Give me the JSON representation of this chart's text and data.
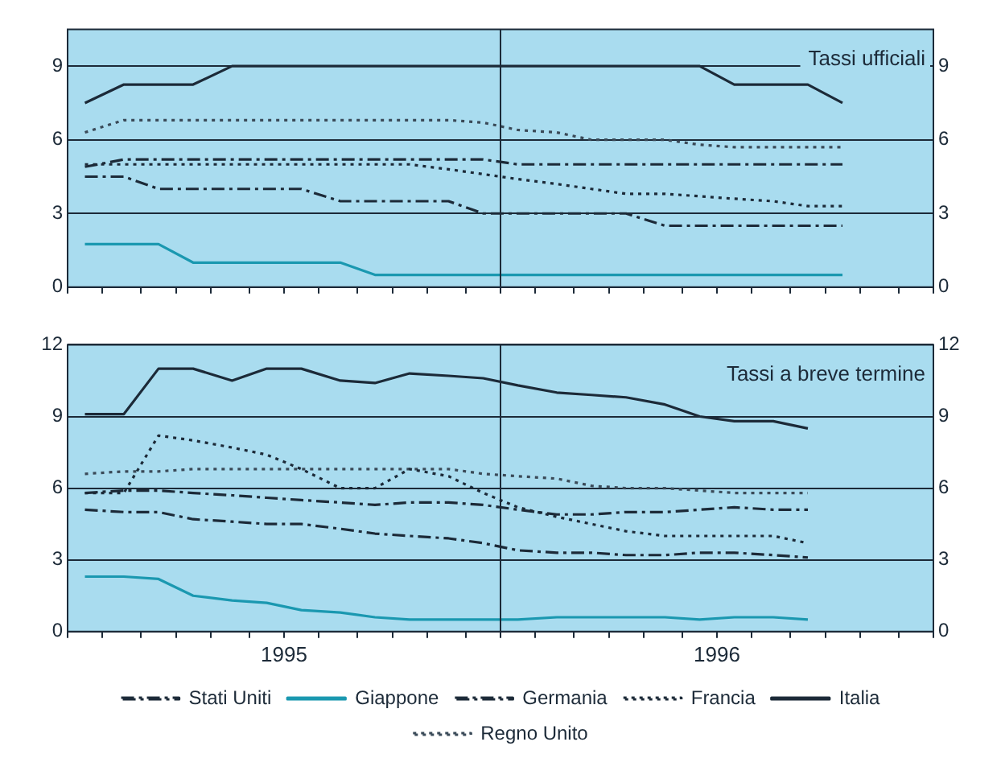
{
  "chart_data": [
    {
      "type": "line",
      "title": "Tassi ufficiali",
      "x": [
        1995.04,
        1995.13,
        1995.21,
        1995.29,
        1995.38,
        1995.46,
        1995.54,
        1995.63,
        1995.71,
        1995.79,
        1995.88,
        1995.96,
        1996.04,
        1996.13,
        1996.21,
        1996.29,
        1996.38,
        1996.46,
        1996.54,
        1996.63,
        1996.71,
        1996.79
      ],
      "series": [
        {
          "color": "#1c2a38",
          "line_style": "dashed",
          "values": [
            4.9,
            5.2,
            5.2,
            5.2,
            5.2,
            5.2,
            5.2,
            5.2,
            5.2,
            5.2,
            5.2,
            5.2,
            5.0,
            5.0,
            5.0,
            5.0,
            5.0,
            5.0,
            5.0,
            5.0,
            5.0,
            5.0
          ]
        },
        {
          "color": "#1a98b0",
          "line_style": "solid",
          "values": [
            1.75,
            1.75,
            1.75,
            1.0,
            1.0,
            1.0,
            1.0,
            1.0,
            0.5,
            0.5,
            0.5,
            0.5,
            0.5,
            0.5,
            0.5,
            0.5,
            0.5,
            0.5,
            0.5,
            0.5,
            0.5,
            0.5
          ]
        },
        {
          "color": "#1c2a38",
          "line_style": "dashed",
          "values": [
            4.5,
            4.5,
            4.0,
            4.0,
            4.0,
            4.0,
            4.0,
            3.5,
            3.5,
            3.5,
            3.5,
            3.0,
            3.0,
            3.0,
            3.0,
            3.0,
            2.5,
            2.5,
            2.5,
            2.5,
            2.5,
            2.5
          ]
        },
        {
          "color": "#1c2a38",
          "line_style": "dotted",
          "values": [
            5.0,
            5.0,
            5.0,
            5.0,
            5.0,
            5.0,
            5.0,
            5.0,
            5.0,
            5.0,
            4.8,
            4.6,
            4.4,
            4.2,
            4.0,
            3.8,
            3.8,
            3.7,
            3.6,
            3.5,
            3.3,
            3.3
          ]
        },
        {
          "color": "#1c2a38",
          "line_style": "solid",
          "values": [
            7.5,
            8.25,
            8.25,
            8.25,
            9.0,
            9.0,
            9.0,
            9.0,
            9.0,
            9.0,
            9.0,
            9.0,
            9.0,
            9.0,
            9.0,
            9.0,
            9.0,
            9.0,
            8.25,
            8.25,
            8.25,
            7.5
          ]
        },
        {
          "color": "#3a4a58",
          "line_style": "dotted",
          "values": [
            6.3,
            6.8,
            6.8,
            6.8,
            6.8,
            6.8,
            6.8,
            6.8,
            6.8,
            6.8,
            6.8,
            6.7,
            6.4,
            6.3,
            6.0,
            6.0,
            6.0,
            5.8,
            5.7,
            5.7,
            5.7,
            5.7
          ]
        }
      ],
      "xlim": [
        1995,
        1997
      ],
      "xticks": [
        {
          "value": 1995,
          "label": null
        },
        {
          "value": 1995.08,
          "label": null
        },
        {
          "value": 1995.17,
          "label": null
        },
        {
          "value": 1995.25,
          "label": null
        },
        {
          "value": 1995.33,
          "label": null
        },
        {
          "value": 1995.42,
          "label": null
        },
        {
          "value": 1995.5,
          "label": null
        },
        {
          "value": 1995.58,
          "label": null
        },
        {
          "value": 1995.67,
          "label": null
        },
        {
          "value": 1995.75,
          "label": null
        },
        {
          "value": 1995.83,
          "label": null
        },
        {
          "value": 1995.92,
          "label": null
        },
        {
          "value": 1996,
          "label": null
        },
        {
          "value": 1996.08,
          "label": null
        },
        {
          "value": 1996.17,
          "label": null
        },
        {
          "value": 1996.25,
          "label": null
        },
        {
          "value": 1996.33,
          "label": null
        },
        {
          "value": 1996.42,
          "label": null
        },
        {
          "value": 1996.5,
          "label": null
        },
        {
          "value": 1996.58,
          "label": null
        },
        {
          "value": 1996.67,
          "label": null
        },
        {
          "value": 1996.75,
          "label": null
        },
        {
          "value": 1996.83,
          "label": null
        },
        {
          "value": 1996.92,
          "label": null
        },
        {
          "value": 1997,
          "label": null
        }
      ],
      "ylim": [
        0,
        10.5
      ],
      "yticks": [
        0,
        3,
        6,
        9
      ],
      "y2lim": [
        0,
        10.5
      ],
      "y2ticks": [
        0,
        3,
        6,
        9
      ],
      "ref_lines": [
        {
          "axis": "x",
          "value": 1996,
          "color": "#1c2a38"
        }
      ],
      "grid": "y",
      "marker": "none",
      "legend": false,
      "tick_labels": "y"
    },
    {
      "type": "line",
      "title": "Tassi a breve termine",
      "x": [
        1995.04,
        1995.13,
        1995.21,
        1995.29,
        1995.38,
        1995.46,
        1995.54,
        1995.63,
        1995.71,
        1995.79,
        1995.88,
        1995.96,
        1996.04,
        1996.13,
        1996.21,
        1996.29,
        1996.38,
        1996.46,
        1996.54,
        1996.63,
        1996.71
      ],
      "series": [
        {
          "name": "Stati Uniti",
          "color": "#1c2a38",
          "line_style": "dashed",
          "values": [
            5.8,
            5.9,
            5.9,
            5.8,
            5.7,
            5.6,
            5.5,
            5.4,
            5.3,
            5.4,
            5.4,
            5.3,
            5.1,
            4.9,
            4.9,
            5.0,
            5.0,
            5.1,
            5.2,
            5.1,
            5.1
          ]
        },
        {
          "name": "Giappone",
          "color": "#1a98b0",
          "line_style": "solid",
          "values": [
            2.3,
            2.3,
            2.2,
            1.5,
            1.3,
            1.2,
            0.9,
            0.8,
            0.6,
            0.5,
            0.5,
            0.5,
            0.5,
            0.6,
            0.6,
            0.6,
            0.6,
            0.5,
            0.6,
            0.6,
            0.5
          ]
        },
        {
          "name": "Germania",
          "color": "#1c2a38",
          "line_style": "dashed",
          "values": [
            5.1,
            5.0,
            5.0,
            4.7,
            4.6,
            4.5,
            4.5,
            4.3,
            4.1,
            4.0,
            3.9,
            3.7,
            3.4,
            3.3,
            3.3,
            3.2,
            3.2,
            3.3,
            3.3,
            3.2,
            3.1
          ]
        },
        {
          "name": "Francia",
          "color": "#1c2a38",
          "line_style": "dotted",
          "values": [
            5.8,
            5.8,
            8.2,
            8.0,
            7.7,
            7.4,
            6.8,
            6.0,
            6.0,
            6.8,
            6.5,
            5.8,
            5.2,
            4.8,
            4.5,
            4.2,
            4.0,
            4.0,
            4.0,
            4.0,
            3.7
          ]
        },
        {
          "name": "Italia",
          "color": "#1c2a38",
          "line_style": "solid",
          "values": [
            9.1,
            9.1,
            11.0,
            11.0,
            10.5,
            11.0,
            11.0,
            10.5,
            10.4,
            10.8,
            10.7,
            10.6,
            10.3,
            10.0,
            9.9,
            9.8,
            9.5,
            9.0,
            8.8,
            8.8,
            8.5
          ]
        },
        {
          "name": "Regno Unito",
          "color": "#3a4a58",
          "line_style": "dotted",
          "values": [
            6.6,
            6.7,
            6.7,
            6.8,
            6.8,
            6.8,
            6.8,
            6.8,
            6.8,
            6.8,
            6.8,
            6.6,
            6.5,
            6.4,
            6.1,
            6.0,
            6.0,
            5.9,
            5.8,
            5.8,
            5.8
          ]
        }
      ],
      "xlim": [
        1995,
        1997
      ],
      "xticks": [
        {
          "value": 1995,
          "label": null
        },
        {
          "value": 1995.08,
          "label": null
        },
        {
          "value": 1995.17,
          "label": null
        },
        {
          "value": 1995.25,
          "label": null
        },
        {
          "value": 1995.33,
          "label": null
        },
        {
          "value": 1995.42,
          "label": null
        },
        {
          "value": 1995.5,
          "label": "1995"
        },
        {
          "value": 1995.58,
          "label": null
        },
        {
          "value": 1995.67,
          "label": null
        },
        {
          "value": 1995.75,
          "label": null
        },
        {
          "value": 1995.83,
          "label": null
        },
        {
          "value": 1995.92,
          "label": null
        },
        {
          "value": 1996,
          "label": null
        },
        {
          "value": 1996.08,
          "label": null
        },
        {
          "value": 1996.17,
          "label": null
        },
        {
          "value": 1996.25,
          "label": null
        },
        {
          "value": 1996.33,
          "label": null
        },
        {
          "value": 1996.42,
          "label": null
        },
        {
          "value": 1996.5,
          "label": "1996"
        },
        {
          "value": 1996.58,
          "label": null
        },
        {
          "value": 1996.67,
          "label": null
        },
        {
          "value": 1996.75,
          "label": null
        },
        {
          "value": 1996.83,
          "label": null
        },
        {
          "value": 1996.92,
          "label": null
        },
        {
          "value": 1997,
          "label": null
        }
      ],
      "ylim": [
        0,
        12
      ],
      "yticks": [
        0,
        3,
        6,
        9,
        12
      ],
      "y2lim": [
        0,
        12
      ],
      "y2ticks": [
        0,
        3,
        6,
        9,
        12
      ],
      "ref_lines": [
        {
          "axis": "x",
          "value": 1996,
          "color": "#1c2a38"
        }
      ],
      "grid": "y",
      "marker": "none",
      "legend": "bottom"
    }
  ]
}
